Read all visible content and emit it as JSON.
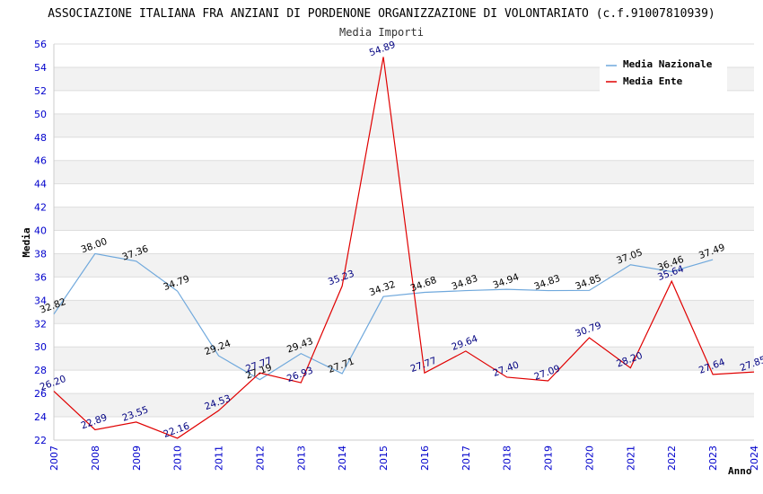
{
  "chart_data": {
    "type": "line",
    "title": "ASSOCIAZIONE ITALIANA FRA ANZIANI DI PORDENONE ORGANIZZAZIONE DI VOLONTARIATO (c.f.91007810939)",
    "subtitle": "Media Importi",
    "xlabel": "Anno",
    "ylabel": "Media",
    "ylim": [
      22,
      56
    ],
    "ytick_step": 2,
    "x": [
      "2007",
      "2008",
      "2009",
      "2010",
      "2011",
      "2012",
      "2013",
      "2014",
      "2015",
      "2016",
      "2017",
      "2018",
      "2019",
      "2020",
      "2021",
      "2022",
      "2023",
      "2024"
    ],
    "grid": true,
    "legend_position": "top-right",
    "series": [
      {
        "name": "Media Nazionale",
        "color": "#6fa8dc",
        "values": [
          32.82,
          38.0,
          37.36,
          34.79,
          29.24,
          27.19,
          29.43,
          27.71,
          34.32,
          34.68,
          34.83,
          34.94,
          34.83,
          34.85,
          37.05,
          36.46,
          37.49,
          null
        ],
        "labels": [
          "32.82",
          "38.00",
          "37.36",
          "34.79",
          "29.24",
          "27.19",
          "29.43",
          "27.71",
          "34.32",
          "34.68",
          "34.83",
          "34.94",
          "34.83",
          "34.85",
          "37.05",
          "36.46",
          "37.49",
          ""
        ]
      },
      {
        "name": "Media Ente",
        "color": "#e00000",
        "values": [
          26.2,
          22.89,
          23.55,
          22.16,
          24.53,
          27.77,
          26.93,
          35.23,
          54.89,
          27.77,
          29.64,
          27.4,
          27.09,
          30.79,
          28.2,
          35.64,
          27.64,
          27.85
        ],
        "labels": [
          "26.20",
          "22.89",
          "23.55",
          "22.16",
          "24.53",
          "27.77",
          "26.93",
          "35.23",
          "54.89",
          "27.77",
          "29.64",
          "27.40",
          "27.09",
          "30.79",
          "28.20",
          "35.64",
          "27.64",
          "27.85"
        ]
      }
    ]
  }
}
